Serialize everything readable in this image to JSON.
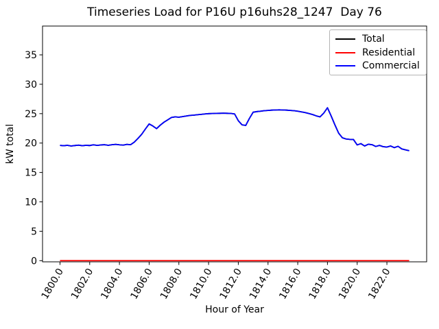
{
  "figure": {
    "title": "Timeseries Load for P16U p16uhs28_1247  Day 76",
    "xlabel": "Hour of Year",
    "ylabel": "kW total",
    "background": "#ffffff"
  },
  "chart_data": {
    "type": "line",
    "title": "Timeseries Load for P16U p16uhs28_1247  Day 76",
    "xlabel": "Hour of Year",
    "ylabel": "kW total",
    "grid": false,
    "legend_position": "upper right",
    "xlim": [
      1798.825,
      1824.675
    ],
    "ylim": [
      -0.2,
      39.9
    ],
    "xticks": [
      1800,
      1802,
      1804,
      1806,
      1808,
      1810,
      1812,
      1814,
      1816,
      1818,
      1820,
      1822
    ],
    "xtick_labels": [
      "1800.0",
      "1802.0",
      "1804.0",
      "1806.0",
      "1808.0",
      "1810.0",
      "1812.0",
      "1814.0",
      "1816.0",
      "1818.0",
      "1820.0",
      "1822.0"
    ],
    "xtick_rotation": 60,
    "yticks": [
      0,
      5,
      10,
      15,
      20,
      25,
      30,
      35
    ],
    "ytick_labels": [
      "0",
      "5",
      "10",
      "15",
      "20",
      "25",
      "30",
      "35"
    ],
    "x": [
      1800.0,
      1800.25,
      1800.5,
      1800.75,
      1801.0,
      1801.25,
      1801.5,
      1801.75,
      1802.0,
      1802.25,
      1802.5,
      1802.75,
      1803.0,
      1803.25,
      1803.5,
      1803.75,
      1804.0,
      1804.25,
      1804.5,
      1804.75,
      1805.0,
      1805.25,
      1805.5,
      1805.75,
      1806.0,
      1806.25,
      1806.5,
      1806.75,
      1807.0,
      1807.25,
      1807.5,
      1807.75,
      1808.0,
      1808.25,
      1808.5,
      1808.75,
      1809.0,
      1809.25,
      1809.5,
      1809.75,
      1810.0,
      1810.25,
      1810.5,
      1810.75,
      1811.0,
      1811.25,
      1811.5,
      1811.75,
      1812.0,
      1812.25,
      1812.5,
      1812.75,
      1813.0,
      1813.25,
      1813.5,
      1813.75,
      1814.0,
      1814.25,
      1814.5,
      1814.75,
      1815.0,
      1815.25,
      1815.5,
      1815.75,
      1816.0,
      1816.25,
      1816.5,
      1816.75,
      1817.0,
      1817.25,
      1817.5,
      1817.75,
      1818.0,
      1818.25,
      1818.5,
      1818.75,
      1819.0,
      1819.25,
      1819.5,
      1819.75,
      1820.0,
      1820.25,
      1820.5,
      1820.75,
      1821.0,
      1821.25,
      1821.5,
      1821.75,
      1822.0,
      1822.25,
      1822.5,
      1822.75,
      1823.0,
      1823.25,
      1823.5
    ],
    "series": [
      {
        "name": "Total",
        "color": "#000000",
        "values": [
          19.6,
          19.55,
          19.62,
          19.5,
          19.58,
          19.65,
          19.55,
          19.62,
          19.58,
          19.7,
          19.6,
          19.68,
          19.72,
          19.62,
          19.72,
          19.78,
          19.7,
          19.65,
          19.78,
          19.72,
          20.15,
          20.8,
          21.5,
          22.4,
          23.25,
          22.9,
          22.45,
          23.05,
          23.55,
          23.95,
          24.35,
          24.45,
          24.4,
          24.5,
          24.6,
          24.7,
          24.75,
          24.82,
          24.88,
          24.95,
          25.0,
          25.02,
          25.05,
          25.06,
          25.08,
          25.06,
          25.04,
          24.95,
          23.8,
          23.1,
          23.0,
          24.2,
          25.25,
          25.35,
          25.42,
          25.5,
          25.55,
          25.6,
          25.62,
          25.65,
          25.62,
          25.6,
          25.55,
          25.5,
          25.42,
          25.3,
          25.18,
          25.02,
          24.85,
          24.62,
          24.45,
          25.1,
          26.0,
          24.6,
          23.1,
          21.7,
          20.9,
          20.7,
          20.62,
          20.6,
          19.68,
          19.9,
          19.5,
          19.8,
          19.72,
          19.42,
          19.6,
          19.38,
          19.32,
          19.5,
          19.22,
          19.45,
          19.0,
          18.85,
          18.7
        ]
      },
      {
        "name": "Residential",
        "color": "#ff0000",
        "values": [
          0,
          0,
          0,
          0,
          0,
          0,
          0,
          0,
          0,
          0,
          0,
          0,
          0,
          0,
          0,
          0,
          0,
          0,
          0,
          0,
          0,
          0,
          0,
          0,
          0,
          0,
          0,
          0,
          0,
          0,
          0,
          0,
          0,
          0,
          0,
          0,
          0,
          0,
          0,
          0,
          0,
          0,
          0,
          0,
          0,
          0,
          0,
          0,
          0,
          0,
          0,
          0,
          0,
          0,
          0,
          0,
          0,
          0,
          0,
          0,
          0,
          0,
          0,
          0,
          0,
          0,
          0,
          0,
          0,
          0,
          0,
          0,
          0,
          0,
          0,
          0,
          0,
          0,
          0,
          0,
          0,
          0,
          0,
          0,
          0,
          0,
          0,
          0,
          0,
          0,
          0,
          0,
          0,
          0,
          0
        ]
      },
      {
        "name": "Commercial",
        "color": "#0000ff",
        "values": [
          19.6,
          19.55,
          19.62,
          19.5,
          19.58,
          19.65,
          19.55,
          19.62,
          19.58,
          19.7,
          19.6,
          19.68,
          19.72,
          19.62,
          19.72,
          19.78,
          19.7,
          19.65,
          19.78,
          19.72,
          20.15,
          20.8,
          21.5,
          22.4,
          23.25,
          22.9,
          22.45,
          23.05,
          23.55,
          23.95,
          24.35,
          24.45,
          24.4,
          24.5,
          24.6,
          24.7,
          24.75,
          24.82,
          24.88,
          24.95,
          25.0,
          25.02,
          25.05,
          25.06,
          25.08,
          25.06,
          25.04,
          24.95,
          23.8,
          23.1,
          23.0,
          24.2,
          25.25,
          25.35,
          25.42,
          25.5,
          25.55,
          25.6,
          25.62,
          25.65,
          25.62,
          25.6,
          25.55,
          25.5,
          25.42,
          25.3,
          25.18,
          25.02,
          24.85,
          24.62,
          24.45,
          25.1,
          26.0,
          24.6,
          23.1,
          21.7,
          20.9,
          20.7,
          20.62,
          20.6,
          19.68,
          19.9,
          19.5,
          19.8,
          19.72,
          19.42,
          19.6,
          19.38,
          19.32,
          19.5,
          19.22,
          19.45,
          19.0,
          18.85,
          18.7
        ]
      }
    ]
  }
}
